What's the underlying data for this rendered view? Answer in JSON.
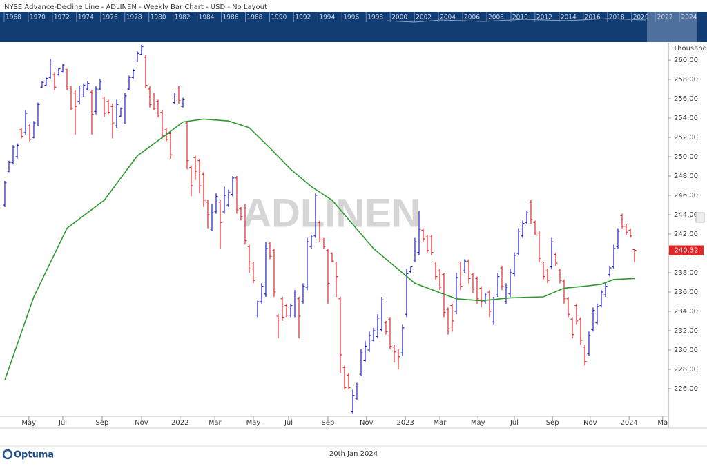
{
  "header": {
    "title": "NYSE  Advance-Decline Line - ADLINEN - Weekly Bar Chart - USD - No Layout"
  },
  "navigator": {
    "years": [
      "1968",
      "1970",
      "1972",
      "1974",
      "1976",
      "1978",
      "1980",
      "1982",
      "1984",
      "1986",
      "1988",
      "1990",
      "1992",
      "1994",
      "1996",
      "1998",
      "2000",
      "2002",
      "2004",
      "2006",
      "2008",
      "2010",
      "2012",
      "2014",
      "2016",
      "2018",
      "2020",
      "2022",
      "2024"
    ]
  },
  "chart_data": {
    "type": "ohlc",
    "watermark": "ADLINEN",
    "y_unit": "Thousand",
    "up_color": "#1f1fc8",
    "down_color": "#e3262a",
    "xlim": [
      -0.33,
      160.17
    ],
    "ylim": [
      223.14,
      261.79
    ],
    "xticks": [
      {
        "value": 5.8,
        "label": "May"
      },
      {
        "value": 14,
        "label": "Jul"
      },
      {
        "value": 23.5,
        "label": "Sep"
      },
      {
        "value": 33,
        "label": "Nov"
      },
      {
        "value": 42.3,
        "label": "2022"
      },
      {
        "value": 50.7,
        "label": "Mar"
      },
      {
        "value": 60,
        "label": "May"
      },
      {
        "value": 68.5,
        "label": "Jul"
      },
      {
        "value": 78,
        "label": "Sep"
      },
      {
        "value": 87.3,
        "label": "Nov"
      },
      {
        "value": 96.7,
        "label": "2023"
      },
      {
        "value": 105,
        "label": "Mar"
      },
      {
        "value": 114.2,
        "label": "May"
      },
      {
        "value": 123,
        "label": "Jul"
      },
      {
        "value": 132.2,
        "label": "Sep"
      },
      {
        "value": 141.3,
        "label": "Nov"
      },
      {
        "value": 150.7,
        "label": "2024"
      },
      {
        "value": 158.8,
        "label": "Ma"
      }
    ],
    "yticks": [
      {
        "value": 226,
        "label": "226.00"
      },
      {
        "value": 228,
        "label": "228.00"
      },
      {
        "value": 230,
        "label": "230.00"
      },
      {
        "value": 232,
        "label": "232.00"
      },
      {
        "value": 234,
        "label": "234.00"
      },
      {
        "value": 236,
        "label": "236.00"
      },
      {
        "value": 238,
        "label": "238.00"
      },
      {
        "value": 240,
        "label": "240.00"
      },
      {
        "value": 242,
        "label": "242.00"
      },
      {
        "value": 244,
        "label": "244.00"
      },
      {
        "value": 246,
        "label": "246.00"
      },
      {
        "value": 248,
        "label": "248.00"
      },
      {
        "value": 250,
        "label": "250.00"
      },
      {
        "value": 252,
        "label": "252.00"
      },
      {
        "value": 254,
        "label": "254.00"
      },
      {
        "value": 256,
        "label": "256.00"
      },
      {
        "value": 258,
        "label": "258.00"
      },
      {
        "value": 260,
        "label": "260.00"
      }
    ],
    "open": [
      245,
      248.5,
      249.4,
      250,
      252.8,
      252.5,
      253.2,
      252,
      253.4,
      257.2,
      257.4,
      258.2,
      258.5,
      258.5,
      258.8,
      259,
      257.1,
      256.6,
      255.7,
      256.4,
      257,
      256.7,
      254.7,
      257,
      256,
      255.7,
      255.2,
      253.2,
      254.2,
      253.6,
      257,
      258.2,
      259.9,
      260.6,
      260.3,
      257,
      256.4,
      255.7,
      254.6,
      252.8,
      252.4,
      255.6,
      257.1,
      255.2,
      253.5,
      248.9,
      249.9,
      249.6,
      248.2,
      245.3,
      242.5,
      244.3,
      245.3,
      244.3,
      245,
      246.1,
      247.8,
      244.6,
      244.9,
      240.7,
      238.9,
      233.6,
      235,
      235.8,
      241,
      240.3,
      233.5,
      235.3,
      234.6,
      233.6,
      233.6,
      235.3,
      235,
      236.5,
      240.7,
      241.8,
      243.2,
      241.4,
      240.3,
      240,
      238.9,
      235.3,
      228.2,
      227.4,
      223.6,
      225,
      227.5,
      228.9,
      230,
      231,
      231.4,
      232.1,
      232.8,
      233.2,
      230.3,
      229.9,
      229.7,
      233.7,
      238.1,
      239.3,
      240.1,
      242.4,
      241.7,
      241.7,
      238.9,
      238.2,
      237.8,
      234.2,
      234.6,
      234,
      238.9,
      238.2,
      239.2,
      237.8,
      237.4,
      236.4,
      235,
      236,
      232.9,
      235.7,
      238.5,
      235,
      235.8,
      237.9,
      240,
      241.8,
      243.2,
      245.3,
      243.2,
      242.1,
      238.9,
      238.2,
      238.6,
      239.9,
      238.2,
      237.1,
      235.3,
      233.2,
      234.6,
      233.2,
      230.3,
      229.6,
      232.1,
      232.8,
      234.6,
      235.7,
      237.8,
      238.6,
      240.7,
      243.9,
      242.8,
      242.4,
      240.4
    ],
    "high": [
      247.5,
      249.6,
      251.2,
      251.4,
      253,
      254.8,
      253.4,
      253.7,
      255.6,
      257.8,
      258.2,
      260.1,
      258.7,
      259.2,
      259.6,
      259.1,
      257.3,
      256.9,
      257.3,
      257.6,
      257.8,
      256.9,
      257.3,
      258,
      256.2,
      255.9,
      255.5,
      255.9,
      255.1,
      256.6,
      258.4,
      259.1,
      260.9,
      261.6,
      260.5,
      257.3,
      256.6,
      255.9,
      254.8,
      253,
      252.6,
      256.6,
      257.3,
      256.1,
      253.7,
      249.1,
      250.1,
      249.8,
      248.4,
      245.5,
      245.1,
      246.2,
      245.5,
      246.9,
      246.6,
      248,
      248,
      244.8,
      245.1,
      240.9,
      239.1,
      235.1,
      236.9,
      241.2,
      241.2,
      240.5,
      233.7,
      235.5,
      234.8,
      234.8,
      236.2,
      235.5,
      236.9,
      241.6,
      241.9,
      246.2,
      243.4,
      241.6,
      240.5,
      240.1,
      239.1,
      235.5,
      228.4,
      227.6,
      225.9,
      226.6,
      230.1,
      230.9,
      231.9,
      232.3,
      233.7,
      235.5,
      233,
      233.4,
      230.5,
      230.1,
      232.6,
      238.4,
      238.7,
      241.6,
      244.4,
      242.6,
      241.9,
      241.9,
      239.1,
      238.4,
      238,
      234.4,
      234.8,
      238,
      239.1,
      239.4,
      239.4,
      238,
      237.6,
      236.6,
      235.9,
      236.2,
      235.5,
      238,
      238.7,
      236.9,
      238.4,
      240.1,
      242.6,
      243.4,
      244.4,
      245.5,
      243.4,
      242.3,
      239.1,
      238.4,
      241.6,
      240.1,
      238.4,
      237.3,
      235.5,
      233.4,
      234.8,
      233.4,
      230.5,
      231.9,
      234.4,
      234.8,
      236.2,
      236.9,
      238.7,
      240.9,
      242.6,
      244.1,
      243,
      242.6,
      240.5
    ],
    "low": [
      244.8,
      248.4,
      249.2,
      249.8,
      251.9,
      252.3,
      251.6,
      251.9,
      253.2,
      257.1,
      257.3,
      258,
      256.9,
      258.4,
      258.7,
      256.9,
      254.8,
      252.3,
      255.5,
      256.2,
      256.9,
      252.3,
      254.4,
      256.9,
      254.1,
      254.4,
      251.9,
      253,
      254.1,
      253.4,
      256.9,
      258,
      259.8,
      260.5,
      257.1,
      255.1,
      254.8,
      254.1,
      251.9,
      251.6,
      249.8,
      255.5,
      255.5,
      255.1,
      248.7,
      245.9,
      247.6,
      246.2,
      244.8,
      242.6,
      242.3,
      244.1,
      240.5,
      244.1,
      244.8,
      245.9,
      244.1,
      243.4,
      240.9,
      238,
      236.9,
      233.4,
      234.8,
      235.5,
      239.4,
      235.5,
      231.2,
      233,
      233.4,
      233.4,
      233.4,
      231.2,
      234.8,
      236.2,
      240.5,
      241.6,
      241.2,
      240.5,
      234.8,
      239.1,
      235.5,
      227.6,
      225.9,
      225.9,
      223.4,
      224.8,
      227.3,
      228.7,
      229.8,
      230.9,
      231.2,
      231.9,
      231.6,
      230.1,
      228.7,
      228,
      229.4,
      233.4,
      238,
      239.1,
      239.8,
      241.2,
      240.1,
      239.8,
      237.3,
      236.2,
      233.4,
      231.6,
      231.9,
      233.7,
      236.2,
      238,
      236.9,
      235.9,
      234.8,
      234.4,
      234.8,
      233.4,
      232.6,
      235.5,
      236.2,
      234.8,
      235.5,
      237.6,
      239.8,
      241.6,
      243,
      243,
      241.9,
      239.1,
      237.3,
      236.9,
      238.4,
      238.7,
      236.9,
      234.8,
      233.4,
      231.2,
      232.6,
      230.5,
      228.4,
      229.4,
      231.9,
      232.6,
      234.4,
      235.5,
      237.6,
      238.4,
      240.5,
      242.6,
      241.9,
      241.6,
      239.1
    ],
    "close": [
      247.3,
      249.4,
      251,
      251.2,
      252.1,
      254.5,
      251.8,
      253.5,
      255.4,
      257.7,
      258.1,
      259.9,
      257.2,
      259.1,
      259.5,
      257.1,
      255,
      255.2,
      257.1,
      257.4,
      257.6,
      254.4,
      257,
      257.8,
      254.5,
      254.6,
      253.5,
      255.4,
      255,
      256.3,
      258.2,
      258.9,
      260.7,
      261.4,
      257.4,
      255.4,
      255,
      254.3,
      252.2,
      251.8,
      250.2,
      256.4,
      255.8,
      255.9,
      249.6,
      247,
      248.5,
      247,
      245.5,
      244,
      244.2,
      245.9,
      243.2,
      246,
      246.3,
      247.8,
      244.5,
      243.8,
      241.3,
      238.4,
      237.2,
      235,
      236.6,
      240.5,
      239.7,
      236,
      233.1,
      233.4,
      233.6,
      234.6,
      235.9,
      233.5,
      236.6,
      241.2,
      241.7,
      246,
      241.4,
      240.7,
      236.9,
      239.2,
      237.6,
      229.5,
      226.1,
      226.1,
      225.3,
      226.4,
      229.7,
      230.4,
      231.5,
      232,
      233.3,
      235.2,
      231.9,
      230.4,
      229.8,
      229.3,
      232.3,
      237.9,
      238.6,
      241.2,
      242.5,
      241.5,
      240.3,
      240.1,
      237.6,
      236.5,
      233.9,
      232.2,
      233,
      237.5,
      236.6,
      239.2,
      237.4,
      236.3,
      235.3,
      235,
      235.7,
      234,
      235.2,
      237.6,
      236.6,
      236.5,
      238,
      239.8,
      242.3,
      243.1,
      244.2,
      243.5,
      242.1,
      239.5,
      237.6,
      237.2,
      241.2,
      239,
      237.2,
      235.3,
      233.7,
      231.6,
      233,
      231,
      228.8,
      231.5,
      234.1,
      234.5,
      236,
      236.6,
      238.5,
      240.5,
      242.3,
      242.8,
      242.2,
      241.8,
      240.32
    ],
    "ma": {
      "color": "#2e9a2e",
      "x": [
        0,
        7,
        15,
        24,
        32,
        39,
        43,
        48,
        54,
        59,
        64,
        69,
        74,
        79,
        84,
        89,
        94,
        99,
        104,
        109,
        115,
        122,
        130,
        135,
        140,
        144,
        147,
        152
      ],
      "values": [
        226.9,
        235.5,
        242.6,
        245.5,
        250.1,
        252.3,
        253.6,
        253.9,
        253.7,
        253,
        250.9,
        248.7,
        246.9,
        245.5,
        243,
        240.5,
        238.7,
        236.9,
        236.1,
        235.3,
        235.1,
        235.4,
        235.5,
        236.4,
        236.6,
        236.8,
        237.3,
        237.4
      ]
    }
  },
  "footer": {
    "brand": "Optuma",
    "date": "20th Jan 2024"
  }
}
